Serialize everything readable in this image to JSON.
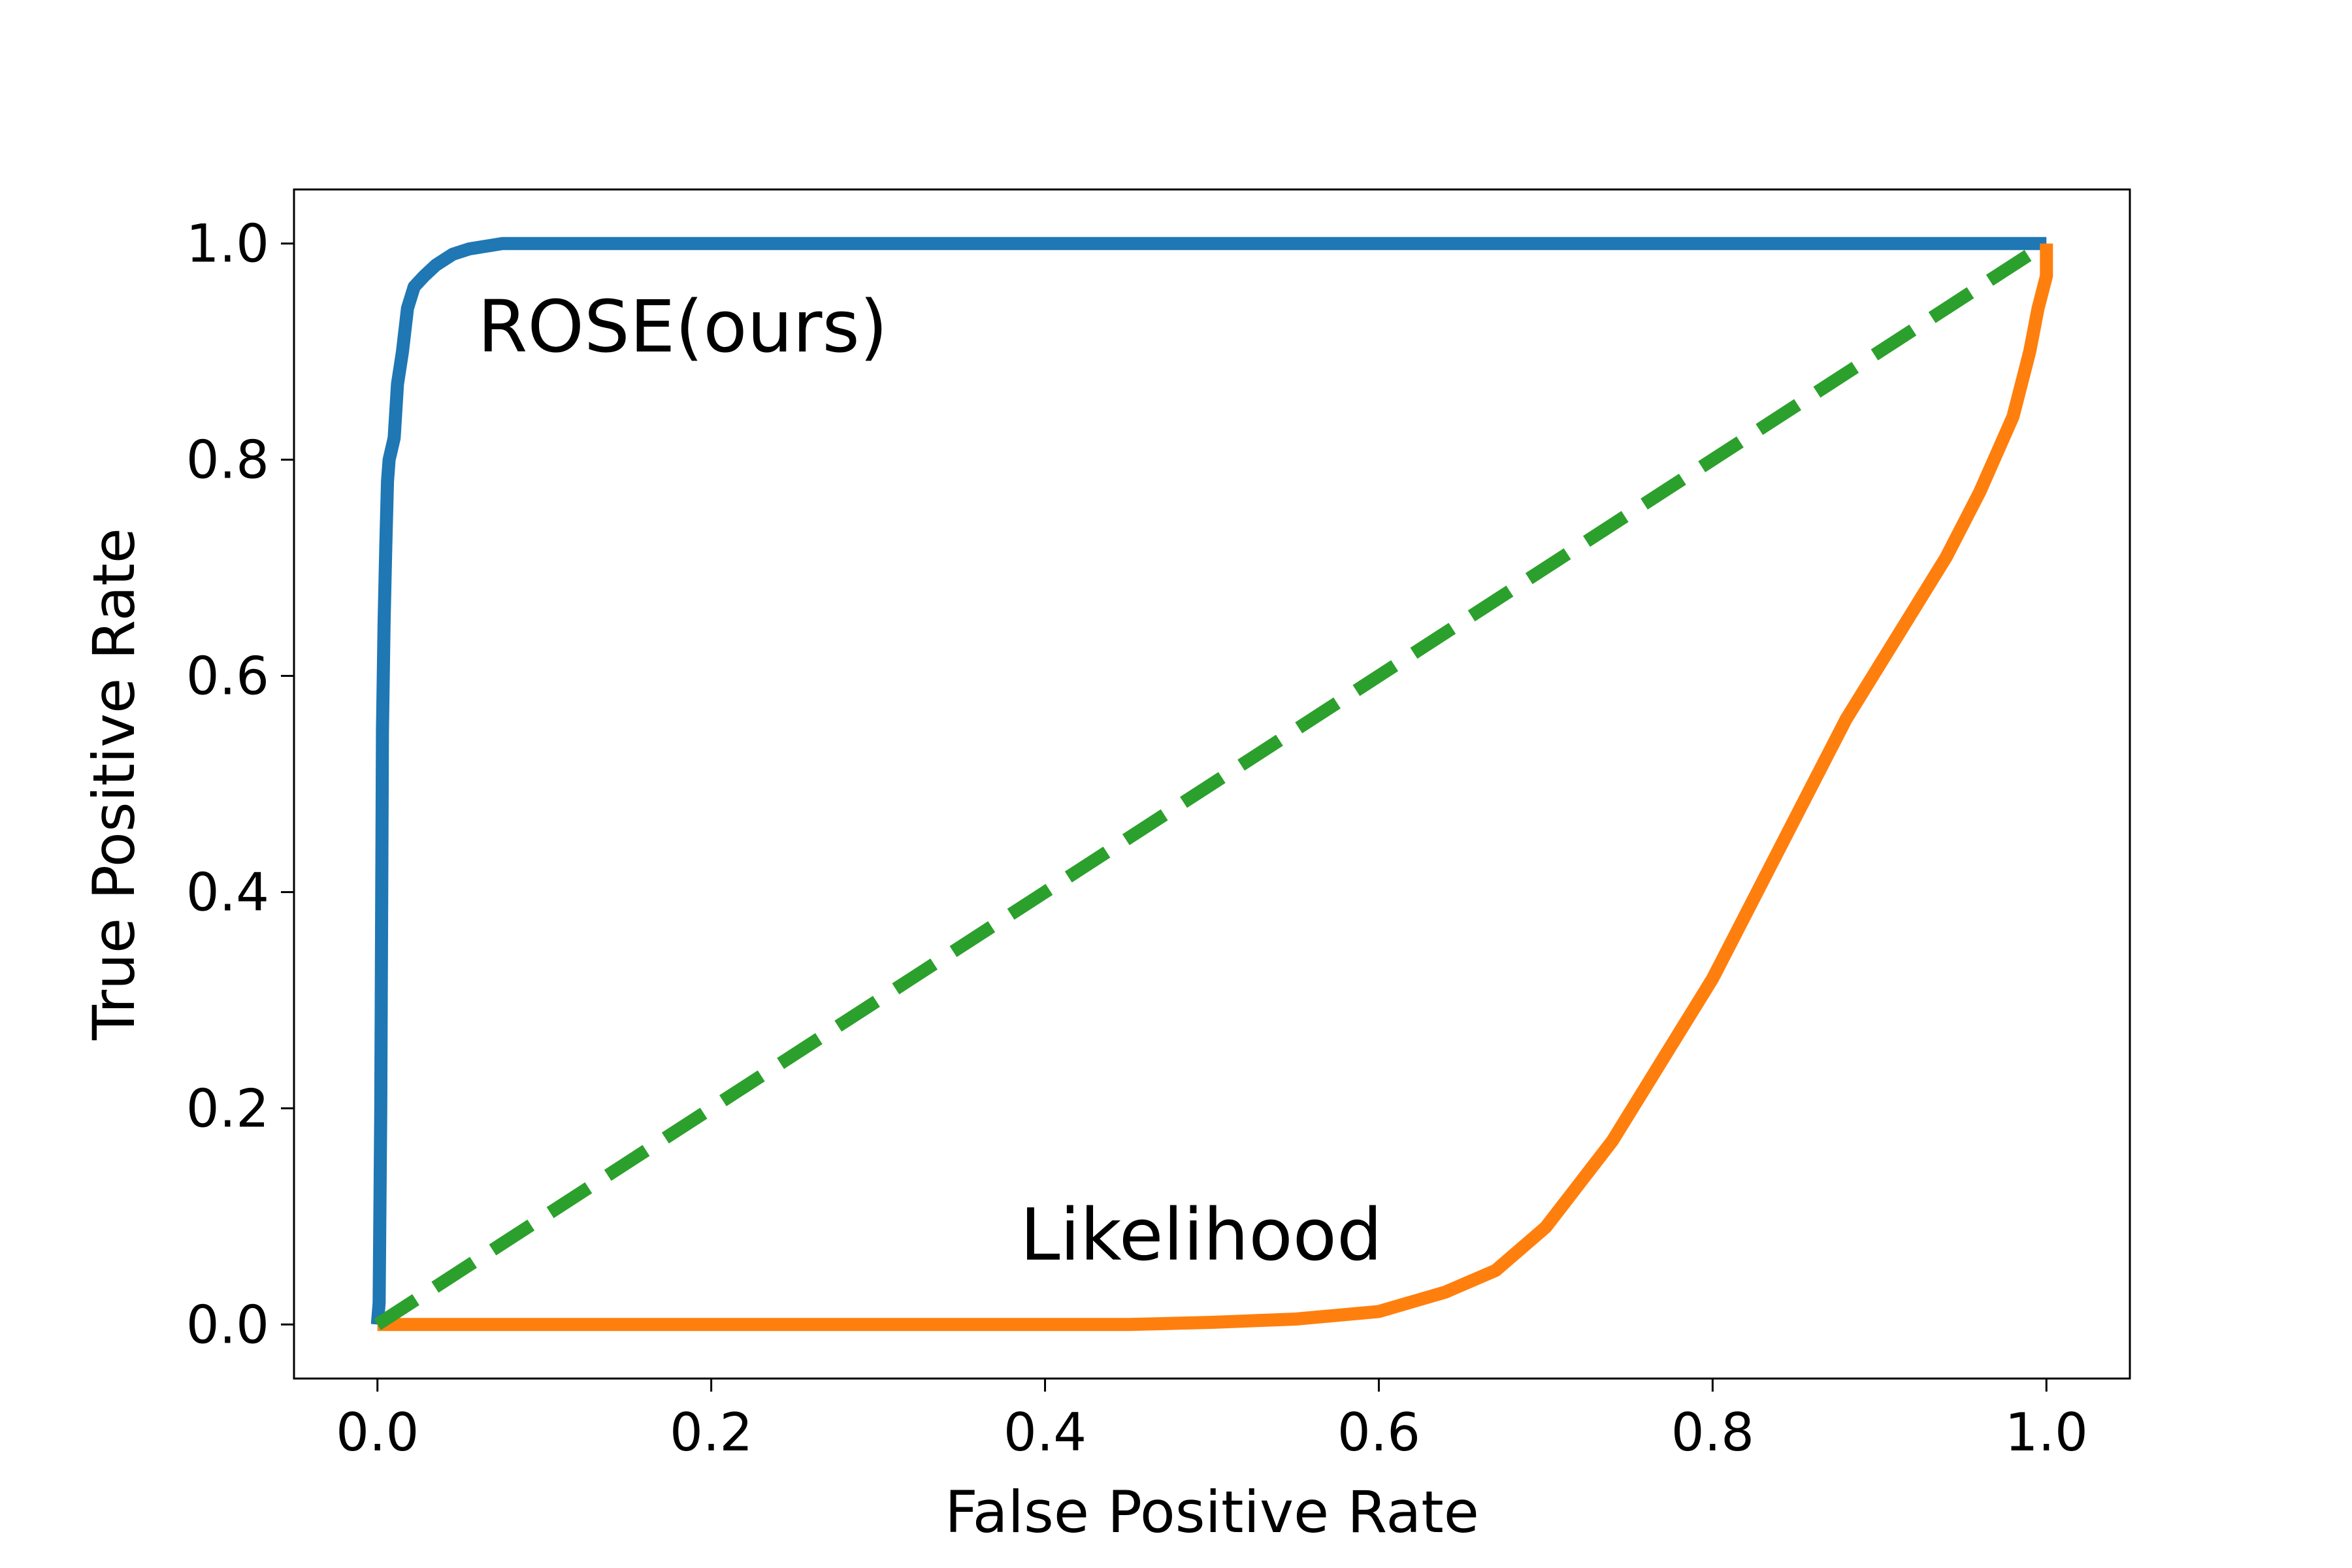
{
  "chart_data": {
    "type": "line",
    "xlabel": "False Positive Rate",
    "ylabel": "True Positive Rate",
    "xlim": [
      -0.05,
      1.05
    ],
    "ylim": [
      -0.05,
      1.05
    ],
    "xticks": [
      "0.0",
      "0.2",
      "0.4",
      "0.6",
      "0.8",
      "1.0"
    ],
    "yticks": [
      "0.0",
      "0.2",
      "0.4",
      "0.6",
      "0.8",
      "1.0"
    ],
    "grid": false,
    "annotations": [
      {
        "text": "ROSE(ours)",
        "x": 0.06,
        "y": 0.9
      },
      {
        "text": "Likelihood",
        "x": 0.385,
        "y": 0.06
      }
    ],
    "series": [
      {
        "color": "#1f77b4",
        "points": [
          [
            0,
            0
          ],
          [
            0.001,
            0.02
          ],
          [
            0.002,
            0.2
          ],
          [
            0.003,
            0.55
          ],
          [
            0.004,
            0.65
          ],
          [
            0.005,
            0.72
          ],
          [
            0.006,
            0.78
          ],
          [
            0.007,
            0.8
          ],
          [
            0.01,
            0.82
          ],
          [
            0.012,
            0.87
          ],
          [
            0.015,
            0.9
          ],
          [
            0.018,
            0.94
          ],
          [
            0.022,
            0.96
          ],
          [
            0.028,
            0.97
          ],
          [
            0.035,
            0.98
          ],
          [
            0.045,
            0.99
          ],
          [
            0.055,
            0.995
          ],
          [
            0.075,
            1.0
          ],
          [
            0.14,
            1.0
          ],
          [
            1.0,
            1.0
          ]
        ]
      },
      {
        "color": "#ff7f0e",
        "points": [
          [
            0,
            0
          ],
          [
            0.45,
            0.0
          ],
          [
            0.5,
            0.002
          ],
          [
            0.55,
            0.005
          ],
          [
            0.6,
            0.012
          ],
          [
            0.64,
            0.03
          ],
          [
            0.67,
            0.05
          ],
          [
            0.7,
            0.09
          ],
          [
            0.72,
            0.13
          ],
          [
            0.74,
            0.17
          ],
          [
            0.76,
            0.22
          ],
          [
            0.78,
            0.27
          ],
          [
            0.8,
            0.32
          ],
          [
            0.82,
            0.38
          ],
          [
            0.84,
            0.44
          ],
          [
            0.86,
            0.5
          ],
          [
            0.88,
            0.56
          ],
          [
            0.9,
            0.61
          ],
          [
            0.92,
            0.66
          ],
          [
            0.94,
            0.71
          ],
          [
            0.96,
            0.77
          ],
          [
            0.98,
            0.84
          ],
          [
            0.99,
            0.9
          ],
          [
            0.995,
            0.94
          ],
          [
            1.0,
            0.97
          ],
          [
            1.0,
            1.0
          ]
        ]
      },
      {
        "color": "#2ca02c",
        "dashed": true,
        "points": [
          [
            0,
            0
          ],
          [
            1,
            1
          ]
        ]
      }
    ]
  }
}
